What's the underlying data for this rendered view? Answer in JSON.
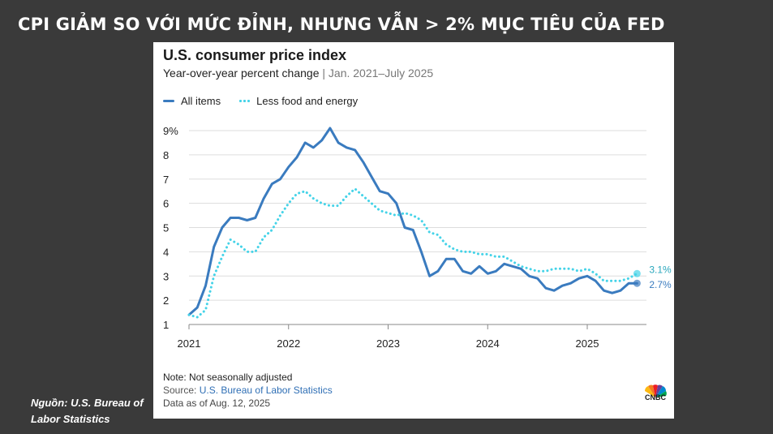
{
  "slide": {
    "title": "CPI GIẢM SO VỚI MỨC ĐỈNH, NHƯNG VẪN > 2% MỤC TIÊU CỦA FED",
    "source_note": "Nguồn: U.S. Bureau of Labor Statistics"
  },
  "card": {
    "footnote": "Note: Not seasonally adjusted",
    "source_prefix": "Source: ",
    "source_link": "U.S. Bureau of Labor Statistics",
    "data_date": "Data as of Aug. 12, 2025",
    "logo_text": "CNBC",
    "subtitle_range": "Jan. 2021–July 2025"
  },
  "colors": {
    "all_items": "#3a7bbf",
    "core": "#45d3e8",
    "background": "#3a3a3a",
    "grid": "#dddddd",
    "axis": "#888888"
  },
  "chart_data": {
    "type": "line",
    "title": "U.S. consumer price index",
    "subtitle": "Year-over-year percent change",
    "xlabel": "",
    "ylabel": "",
    "ylim": [
      1,
      9
    ],
    "xlim": [
      "2021-01",
      "2025-07"
    ],
    "y_ticks": [
      "1",
      "2",
      "3",
      "4",
      "5",
      "6",
      "7",
      "8",
      "9%"
    ],
    "x_ticks": [
      "2021",
      "2022",
      "2023",
      "2024",
      "2025"
    ],
    "grid": true,
    "legend_position": "top-left",
    "x": [
      "2021-01",
      "2021-02",
      "2021-03",
      "2021-04",
      "2021-05",
      "2021-06",
      "2021-07",
      "2021-08",
      "2021-09",
      "2021-10",
      "2021-11",
      "2021-12",
      "2022-01",
      "2022-02",
      "2022-03",
      "2022-04",
      "2022-05",
      "2022-06",
      "2022-07",
      "2022-08",
      "2022-09",
      "2022-10",
      "2022-11",
      "2022-12",
      "2023-01",
      "2023-02",
      "2023-03",
      "2023-04",
      "2023-05",
      "2023-06",
      "2023-07",
      "2023-08",
      "2023-09",
      "2023-10",
      "2023-11",
      "2023-12",
      "2024-01",
      "2024-02",
      "2024-03",
      "2024-04",
      "2024-05",
      "2024-06",
      "2024-07",
      "2024-08",
      "2024-09",
      "2024-10",
      "2024-11",
      "2024-12",
      "2025-01",
      "2025-02",
      "2025-03",
      "2025-04",
      "2025-05",
      "2025-06",
      "2025-07"
    ],
    "series": [
      {
        "name": "All items",
        "style": "solid",
        "end_label": "2.7%",
        "values": [
          1.4,
          1.7,
          2.6,
          4.2,
          5.0,
          5.4,
          5.4,
          5.3,
          5.4,
          6.2,
          6.8,
          7.0,
          7.5,
          7.9,
          8.5,
          8.3,
          8.6,
          9.1,
          8.5,
          8.3,
          8.2,
          7.7,
          7.1,
          6.5,
          6.4,
          6.0,
          5.0,
          4.9,
          4.0,
          3.0,
          3.2,
          3.7,
          3.7,
          3.2,
          3.1,
          3.4,
          3.1,
          3.2,
          3.5,
          3.4,
          3.3,
          3.0,
          2.9,
          2.5,
          2.4,
          2.6,
          2.7,
          2.9,
          3.0,
          2.8,
          2.4,
          2.3,
          2.4,
          2.7,
          2.7
        ]
      },
      {
        "name": "Less food and energy",
        "style": "dotted",
        "end_label": "3.1%",
        "values": [
          1.4,
          1.3,
          1.6,
          3.0,
          3.8,
          4.5,
          4.3,
          4.0,
          4.0,
          4.6,
          4.9,
          5.5,
          6.0,
          6.4,
          6.5,
          6.2,
          6.0,
          5.9,
          5.9,
          6.3,
          6.6,
          6.3,
          6.0,
          5.7,
          5.6,
          5.5,
          5.6,
          5.5,
          5.3,
          4.8,
          4.7,
          4.3,
          4.1,
          4.0,
          4.0,
          3.9,
          3.9,
          3.8,
          3.8,
          3.6,
          3.4,
          3.3,
          3.2,
          3.2,
          3.3,
          3.3,
          3.3,
          3.2,
          3.3,
          3.1,
          2.8,
          2.8,
          2.8,
          2.9,
          3.1
        ]
      }
    ]
  }
}
